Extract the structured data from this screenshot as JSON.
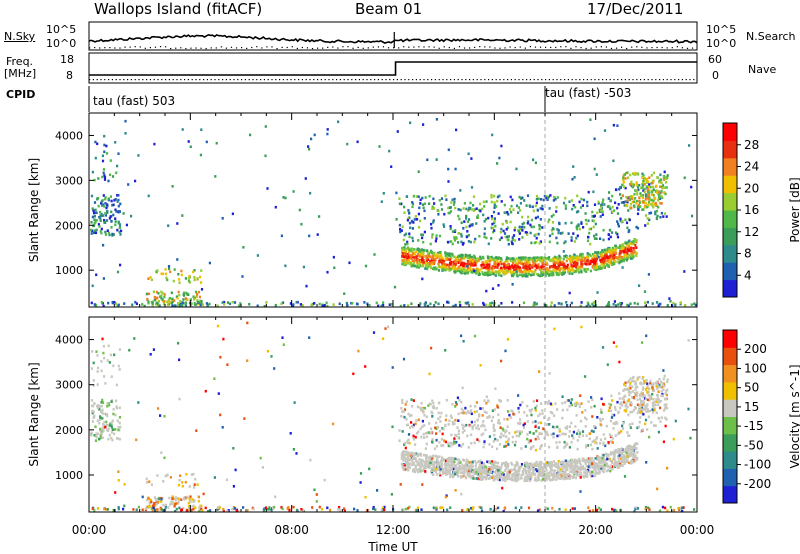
{
  "header": {
    "title": "Wallops Island (fitACF)",
    "beam": "Beam 01",
    "date": "17/Dec/2011"
  },
  "top_panels": {
    "nsky_label": "N.Sky",
    "nsearch_label": "N.Search",
    "freq_label": "Freq.",
    "freq_unit": "[MHz]",
    "nave_label": "Nave",
    "cpid_label": "CPID",
    "left_ticks_noise": [
      "10^5",
      "10^0"
    ],
    "right_ticks_noise": [
      "10^5",
      "10^0"
    ],
    "left_ticks_freq": [
      "18",
      "8"
    ],
    "right_ticks_nave": [
      "60",
      "0"
    ],
    "cpid_segments": [
      {
        "start_hour": 0,
        "label": "tau (fast) 503"
      },
      {
        "start_hour": 18,
        "label": "tau (fast) -503"
      }
    ]
  },
  "colors": {
    "power_scale": [
      "#1f1fd6",
      "#2060b0",
      "#2e8b8b",
      "#3a9e5a",
      "#4fb848",
      "#9acd32",
      "#f0c000",
      "#f08020",
      "#e83010",
      "#ff0000"
    ],
    "velocity_scale": [
      "#1f1fd6",
      "#2060b0",
      "#2e8b8b",
      "#3a9e5a",
      "#6cc04a",
      "#c8c8c0",
      "#f0c000",
      "#f09020",
      "#e85010",
      "#ff0000"
    ]
  },
  "chart_data": [
    {
      "type": "heatmap",
      "title": "",
      "xlabel": "",
      "ylabel": "Slant Range [km]",
      "x_ticks": [
        "00:00",
        "04:00",
        "08:00",
        "12:00",
        "16:00",
        "20:00",
        "00:00"
      ],
      "xlim_hours": [
        0,
        24
      ],
      "ylim_km": [
        180,
        4500
      ],
      "y_ticks": [
        1000,
        2000,
        3000,
        4000
      ],
      "colorbar": {
        "label": "Power [dB]",
        "ticks": [
          4,
          8,
          12,
          16,
          20,
          24,
          28
        ],
        "range": [
          0,
          30
        ]
      },
      "features": [
        {
          "name": "main echo band",
          "start_hour": 12.6,
          "end_hour": 21.5,
          "range_km": [
            1000,
            1600
          ],
          "level_db": 26
        },
        {
          "name": "upper scatter",
          "start_hour": 12.3,
          "end_hour": 22.8,
          "range_km": [
            1600,
            2700
          ],
          "level_db": 10
        },
        {
          "name": "early scatter",
          "start_hour": 0.0,
          "end_hour": 1.2,
          "range_km": [
            1800,
            4000
          ],
          "level_db": 9
        }
      ]
    },
    {
      "type": "heatmap",
      "title": "",
      "xlabel": "Time UT",
      "ylabel": "Slant Range [km]",
      "x_ticks": [
        "00:00",
        "04:00",
        "08:00",
        "12:00",
        "16:00",
        "20:00",
        "00:00"
      ],
      "xlim_hours": [
        0,
        24
      ],
      "ylim_km": [
        180,
        4500
      ],
      "y_ticks": [
        1000,
        2000,
        3000,
        4000
      ],
      "colorbar": {
        "label": "Velocity [m s^-1]",
        "ticks": [
          "200",
          "100",
          "50",
          "15",
          "-15",
          "-50",
          "-100",
          "-200"
        ],
        "range": [
          -250,
          250
        ]
      },
      "features": [
        {
          "name": "ground scatter",
          "start_hour": 12.3,
          "end_hour": 22.8,
          "range_km": [
            900,
            3200
          ],
          "velocity": 0
        }
      ]
    }
  ]
}
